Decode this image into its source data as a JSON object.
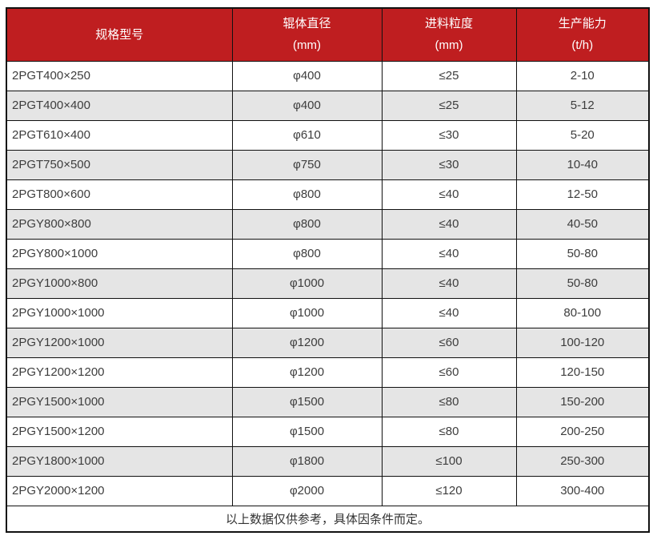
{
  "table": {
    "colors": {
      "header_bg": "#bf1e20",
      "header_text": "#ffffff",
      "row_alt_bg": "#e5e5e5",
      "border": "#111111",
      "text": "#3d3d3d"
    },
    "columns": [
      {
        "label": "规格型号",
        "sub": ""
      },
      {
        "label": "辊体直径",
        "sub": "(mm)"
      },
      {
        "label": "进料粒度",
        "sub": "(mm)"
      },
      {
        "label": "生产能力",
        "sub": "(t/h)"
      }
    ],
    "rows": [
      {
        "model": "2PGT400×250",
        "diameter": "φ400",
        "feed_size": "≤25",
        "capacity": "2-10"
      },
      {
        "model": "2PGT400×400",
        "diameter": "φ400",
        "feed_size": "≤25",
        "capacity": "5-12"
      },
      {
        "model": "2PGT610×400",
        "diameter": "φ610",
        "feed_size": "≤30",
        "capacity": "5-20"
      },
      {
        "model": "2PGT750×500",
        "diameter": "φ750",
        "feed_size": "≤30",
        "capacity": "10-40"
      },
      {
        "model": "2PGT800×600",
        "diameter": "φ800",
        "feed_size": "≤40",
        "capacity": "12-50"
      },
      {
        "model": "2PGY800×800",
        "diameter": "φ800",
        "feed_size": "≤40",
        "capacity": "40-50"
      },
      {
        "model": "2PGY800×1000",
        "diameter": "φ800",
        "feed_size": "≤40",
        "capacity": "50-80"
      },
      {
        "model": "2PGY1000×800",
        "diameter": "φ1000",
        "feed_size": "≤40",
        "capacity": "50-80"
      },
      {
        "model": "2PGY1000×1000",
        "diameter": "φ1000",
        "feed_size": "≤40",
        "capacity": "80-100"
      },
      {
        "model": "2PGY1200×1000",
        "diameter": "φ1200",
        "feed_size": "≤60",
        "capacity": "100-120"
      },
      {
        "model": "2PGY1200×1200",
        "diameter": "φ1200",
        "feed_size": "≤60",
        "capacity": "120-150"
      },
      {
        "model": "2PGY1500×1000",
        "diameter": "φ1500",
        "feed_size": "≤80",
        "capacity": "150-200"
      },
      {
        "model": "2PGY1500×1200",
        "diameter": "φ1500",
        "feed_size": "≤80",
        "capacity": "200-250"
      },
      {
        "model": "2PGY1800×1000",
        "diameter": "φ1800",
        "feed_size": "≤100",
        "capacity": "250-300"
      },
      {
        "model": "2PGY2000×1200",
        "diameter": "φ2000",
        "feed_size": "≤120",
        "capacity": "300-400"
      }
    ],
    "footer_note": "以上数据仅供参考，具体因条件而定。"
  }
}
